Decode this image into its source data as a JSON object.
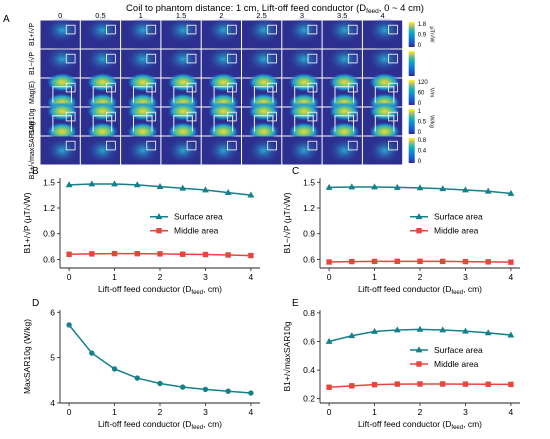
{
  "figure_title": "Coil to phantom distance: 1 cm, Lift-off feed conductor (D",
  "figure_title_sub": "feed",
  "figure_title_end": ", 0 ~ 4 cm)",
  "heatmap_panel": {
    "label": "A",
    "columns": [
      "0",
      "0.5",
      "1",
      "1.5",
      "2",
      "2.5",
      "3",
      "3.5",
      "4"
    ],
    "rows": [
      {
        "label": "B1+/√P",
        "cbar_ticks": [
          "1.8",
          "0.9",
          "0"
        ],
        "cbar_unit": "µT/√W"
      },
      {
        "label": "B1−/√P",
        "cbar_ticks": [],
        "cbar_unit": ""
      },
      {
        "label": "Mag(E)",
        "cbar_ticks": [
          "120",
          "60",
          "0"
        ],
        "cbar_unit": "V/m"
      },
      {
        "label": "SAR10g",
        "cbar_ticks": [
          "1",
          "0.5",
          "0"
        ],
        "cbar_unit": "W/kg"
      },
      {
        "label": "B1+/√maxSAR10g",
        "cbar_ticks": [
          "0.8",
          "0.4",
          "0"
        ],
        "cbar_unit": ""
      }
    ]
  },
  "colors": {
    "surface": "#13808a",
    "middle": "#e8453c"
  },
  "chart_data": [
    {
      "panel": "B",
      "type": "line",
      "x": [
        0,
        0.5,
        1,
        1.5,
        2,
        2.5,
        3,
        3.5,
        4
      ],
      "xlabel": "Lift-off feed conductor (D",
      "xlabel_sub": "feed",
      "xlabel_end": ", cm)",
      "ylabel": "B1+/√P (µT/√W)",
      "xlim": [
        -0.2,
        4.2
      ],
      "ylim": [
        0.5,
        1.55
      ],
      "xticks": [
        "0",
        "1",
        "2",
        "3",
        "4"
      ],
      "yticks": [
        "0.6",
        "0.9",
        "1.2",
        "1.5"
      ],
      "series": [
        {
          "name": "Surface area",
          "marker": "triangle",
          "values": [
            1.47,
            1.48,
            1.48,
            1.47,
            1.45,
            1.43,
            1.41,
            1.38,
            1.35
          ]
        },
        {
          "name": "Middle area",
          "marker": "square",
          "values": [
            0.66,
            0.665,
            0.668,
            0.667,
            0.665,
            0.661,
            0.657,
            0.652,
            0.645
          ]
        }
      ],
      "legend": "center-right"
    },
    {
      "panel": "C",
      "type": "line",
      "x": [
        0,
        0.5,
        1,
        1.5,
        2,
        2.5,
        3,
        3.5,
        4
      ],
      "xlabel": "Lift-off feed conductor (D",
      "xlabel_sub": "feed",
      "xlabel_end": ", cm)",
      "ylabel": "B1−/√P (µT/√W)",
      "xlim": [
        -0.2,
        4.2
      ],
      "ylim": [
        0.5,
        1.55
      ],
      "xticks": [
        "0",
        "1",
        "2",
        "3",
        "4"
      ],
      "yticks": [
        "0.6",
        "0.9",
        "1.2",
        "1.5"
      ],
      "series": [
        {
          "name": "Surface area",
          "marker": "triangle",
          "values": [
            1.44,
            1.445,
            1.445,
            1.44,
            1.435,
            1.425,
            1.41,
            1.395,
            1.37
          ]
        },
        {
          "name": "Middle area",
          "marker": "square",
          "values": [
            0.57,
            0.575,
            0.577,
            0.578,
            0.578,
            0.577,
            0.575,
            0.572,
            0.568
          ]
        }
      ],
      "legend": "center-right"
    },
    {
      "panel": "D",
      "type": "line",
      "x": [
        0,
        0.5,
        1,
        1.5,
        2,
        2.5,
        3,
        3.5,
        4
      ],
      "xlabel": "Lift-off feed conductor (D",
      "xlabel_sub": "feed",
      "xlabel_end": ", cm)",
      "ylabel": "MaxSAR10g (W/kg)",
      "xlim": [
        -0.2,
        4.2
      ],
      "ylim": [
        4,
        6.05
      ],
      "xticks": [
        "0",
        "1",
        "2",
        "3",
        "4"
      ],
      "yticks": [
        "4",
        "5",
        "6"
      ],
      "series": [
        {
          "name": "",
          "marker": "circle",
          "values": [
            5.72,
            5.1,
            4.75,
            4.55,
            4.43,
            4.35,
            4.3,
            4.26,
            4.22
          ]
        }
      ],
      "legend": "none"
    },
    {
      "panel": "E",
      "type": "line",
      "x": [
        0,
        0.5,
        1,
        1.5,
        2,
        2.5,
        3,
        3.5,
        4
      ],
      "xlabel": "Lift-off feed conductor (D",
      "xlabel_sub": "feed",
      "xlabel_end": ", cm)",
      "ylabel": "B1+/√maxSAR10g",
      "xlim": [
        -0.2,
        4.2
      ],
      "ylim": [
        0.17,
        0.82
      ],
      "xticks": [
        "0",
        "1",
        "2",
        "3",
        "4"
      ],
      "yticks": [
        "0.2",
        "0.4",
        "0.6",
        "0.8"
      ],
      "series": [
        {
          "name": "Surface area",
          "marker": "triangle",
          "values": [
            0.6,
            0.64,
            0.67,
            0.68,
            0.685,
            0.68,
            0.672,
            0.66,
            0.645
          ]
        },
        {
          "name": "Middle area",
          "marker": "square",
          "values": [
            0.28,
            0.29,
            0.298,
            0.302,
            0.303,
            0.303,
            0.302,
            0.301,
            0.3
          ]
        }
      ],
      "legend": "center-right"
    }
  ]
}
